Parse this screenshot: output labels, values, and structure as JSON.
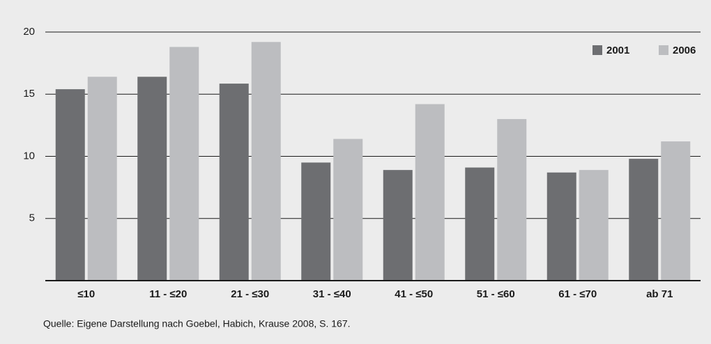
{
  "chart_data": {
    "type": "bar",
    "categories": [
      "≤10",
      "11 - ≤20",
      "21 - ≤30",
      "31 - ≤40",
      "41 - ≤50",
      "51 - ≤60",
      "61 - ≤70",
      "ab 71"
    ],
    "series": [
      {
        "name": "2001",
        "color": "#6d6e71",
        "values": [
          15.4,
          16.4,
          15.85,
          9.5,
          8.9,
          9.1,
          8.7,
          9.8
        ]
      },
      {
        "name": "2006",
        "color": "#bcbdc0",
        "values": [
          16.4,
          18.8,
          19.2,
          11.4,
          14.2,
          13.0,
          8.9,
          11.2
        ]
      }
    ],
    "ylim": [
      0,
      20
    ],
    "yticks": [
      5,
      10,
      15,
      20
    ],
    "grid": true,
    "legend": "top-right",
    "source": "Quelle: Eigene Darstellung nach Goebel, Habich, Krause 2008, S. 167."
  }
}
